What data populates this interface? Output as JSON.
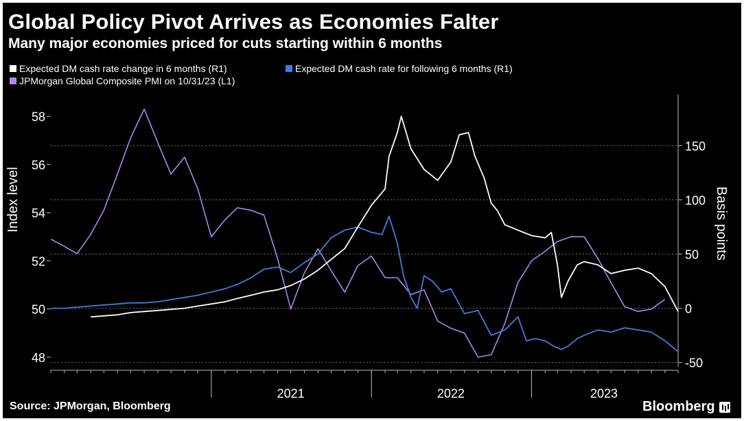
{
  "header": {
    "title": "Global Policy Pivot Arrives as Economies Falter",
    "subtitle": "Many major economies priced for cuts starting within 6 months"
  },
  "legend": [
    {
      "label": "Expected DM cash rate change in 6 months (R1)",
      "color": "#ffffff"
    },
    {
      "label": "Expected DM cash rate for following 6 months (R1)",
      "color": "#3d7fdc"
    },
    {
      "label": "JPMorgan Global Composite PMI on 10/31/23 (L1)",
      "color": "#b383f2"
    }
  ],
  "footer": {
    "source": "Source: JPMorgan, Bloomberg",
    "brand": "Bloomberg"
  },
  "chart_data": {
    "type": "line",
    "title": "Global Policy Pivot Arrives as Economies Falter",
    "subtitle": "Many major economies priced for cuts starting within 6 months",
    "ylabel_left": "Index level",
    "ylabel_right": "Basis points",
    "left_axis": {
      "range": [
        47.6,
        58.9
      ],
      "ticks": [
        48,
        50,
        52,
        54,
        56,
        58
      ]
    },
    "right_axis": {
      "range": [
        -54,
        197
      ],
      "ticks": [
        -50,
        0,
        50,
        100,
        150
      ]
    },
    "x_axis": {
      "range": [
        "2020-01",
        "2023-12"
      ],
      "year_labels": [
        "2021",
        "2022",
        "2023"
      ]
    },
    "grid": true,
    "legend_position": "top-left",
    "series": [
      {
        "name": "Expected DM cash rate change in 6 months (R1)",
        "axis": "right",
        "color": "#ffffff",
        "x": [
          "2020-04-01",
          "2020-05-01",
          "2020-06-01",
          "2020-07-01",
          "2020-08-01",
          "2020-09-01",
          "2020-10-01",
          "2020-11-01",
          "2020-12-01",
          "2021-01-01",
          "2021-02-01",
          "2021-03-01",
          "2021-04-01",
          "2021-05-01",
          "2021-06-01",
          "2021-07-01",
          "2021-08-01",
          "2021-09-01",
          "2021-10-01",
          "2021-11-01",
          "2021-12-01",
          "2022-01-01",
          "2022-02-01",
          "2022-02-10",
          "2022-03-01",
          "2022-03-10",
          "2022-04-01",
          "2022-05-01",
          "2022-06-01",
          "2022-07-01",
          "2022-07-20",
          "2022-08-10",
          "2022-08-25",
          "2022-09-15",
          "2022-10-01",
          "2022-10-15",
          "2022-11-01",
          "2022-12-01",
          "2023-01-01",
          "2023-02-01",
          "2023-02-15",
          "2023-03-01",
          "2023-03-10",
          "2023-03-25",
          "2023-04-15",
          "2023-05-01",
          "2023-06-01",
          "2023-07-01",
          "2023-08-01",
          "2023-09-01",
          "2023-10-01",
          "2023-11-01",
          "2023-12-01"
        ],
        "y": [
          -8,
          -7,
          -6,
          -4,
          -3,
          -2,
          -1,
          0,
          2,
          4,
          6,
          9,
          12,
          15,
          17,
          21,
          27,
          35,
          45,
          55,
          75,
          95,
          110,
          140,
          162,
          177,
          147,
          128,
          118,
          135,
          160,
          162,
          140,
          120,
          97,
          90,
          77,
          72,
          67,
          65,
          70,
          40,
          10,
          25,
          40,
          43,
          40,
          32,
          35,
          37,
          32,
          20,
          -3
        ]
      },
      {
        "name": "Expected DM cash rate for following 6 months (R1)",
        "axis": "right",
        "color": "#3d7fdc",
        "x": [
          "2020-01-01",
          "2020-02-01",
          "2020-03-01",
          "2020-04-01",
          "2020-05-01",
          "2020-06-01",
          "2020-07-01",
          "2020-08-01",
          "2020-09-01",
          "2020-10-01",
          "2020-11-01",
          "2020-12-01",
          "2021-01-01",
          "2021-02-01",
          "2021-03-01",
          "2021-04-01",
          "2021-05-01",
          "2021-06-01",
          "2021-07-01",
          "2021-08-01",
          "2021-09-01",
          "2021-10-01",
          "2021-11-01",
          "2021-12-01",
          "2022-01-01",
          "2022-01-25",
          "2022-02-10",
          "2022-03-01",
          "2022-03-15",
          "2022-04-01",
          "2022-04-15",
          "2022-05-01",
          "2022-05-20",
          "2022-06-10",
          "2022-07-01",
          "2022-08-01",
          "2022-09-01",
          "2022-10-01",
          "2022-11-01",
          "2022-12-01",
          "2022-12-20",
          "2023-01-10",
          "2023-02-01",
          "2023-02-20",
          "2023-03-10",
          "2023-03-25",
          "2023-04-15",
          "2023-05-01",
          "2023-06-01",
          "2023-07-01",
          "2023-08-01",
          "2023-09-01",
          "2023-10-01",
          "2023-11-01",
          "2023-12-01"
        ],
        "y": [
          0,
          0,
          1,
          2,
          3,
          4,
          5,
          5,
          6,
          8,
          10,
          12,
          15,
          18,
          22,
          28,
          36,
          38,
          33,
          42,
          50,
          65,
          72,
          75,
          70,
          68,
          85,
          60,
          30,
          10,
          0,
          30,
          25,
          15,
          18,
          -5,
          -2,
          -25,
          -20,
          -8,
          -30,
          -28,
          -30,
          -35,
          -38,
          -35,
          -28,
          -25,
          -20,
          -22,
          -18,
          -20,
          -22,
          -30,
          -40
        ]
      },
      {
        "name": "JPMorgan Global Composite PMI on 10/31/23 (L1)",
        "axis": "left",
        "color": "#b383f2",
        "x": [
          "2020-01",
          "2020-02",
          "2020-03",
          "2020-04",
          "2020-05",
          "2020-06",
          "2020-07",
          "2020-08",
          "2020-09",
          "2020-10",
          "2020-11",
          "2020-12",
          "2021-01",
          "2021-02",
          "2021-03",
          "2021-04",
          "2021-05",
          "2021-06",
          "2021-07",
          "2021-08",
          "2021-09",
          "2021-10",
          "2021-11",
          "2021-12",
          "2022-01",
          "2022-02",
          "2022-03",
          "2022-04",
          "2022-05",
          "2022-06",
          "2022-07",
          "2022-08",
          "2022-09",
          "2022-10",
          "2022-11",
          "2022-12",
          "2023-01",
          "2023-02",
          "2023-03",
          "2023-04",
          "2023-05",
          "2023-06",
          "2023-07",
          "2023-08",
          "2023-09",
          "2023-10",
          "2023-11"
        ],
        "y": [
          52.9,
          52.6,
          52.3,
          53.1,
          54.1,
          55.6,
          57.1,
          58.3,
          56.9,
          55.6,
          56.3,
          55.0,
          53.0,
          53.7,
          54.2,
          54.1,
          53.9,
          52.1,
          50.0,
          51.5,
          52.5,
          51.6,
          50.7,
          51.8,
          52.2,
          51.3,
          51.3,
          50.6,
          50.8,
          49.5,
          49.2,
          49.0,
          48.0,
          48.1,
          49.4,
          51.1,
          52.0,
          52.4,
          52.8,
          53.0,
          53.0,
          52.1,
          51.1,
          50.1,
          49.9,
          50.0,
          50.4
        ]
      }
    ]
  }
}
